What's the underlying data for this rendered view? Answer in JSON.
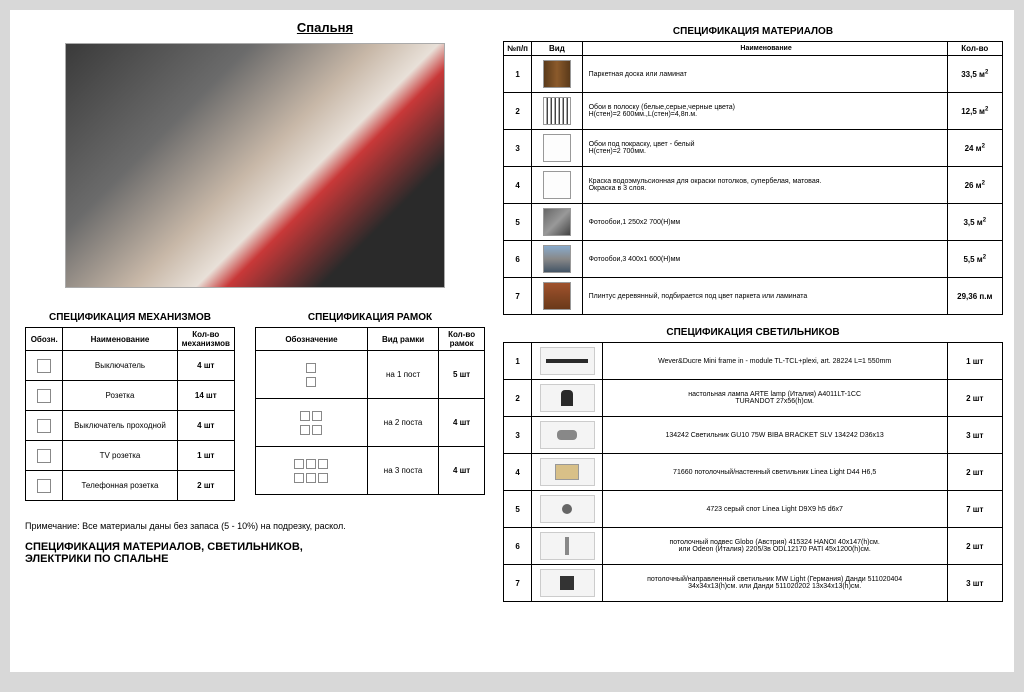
{
  "main_title": "Спальня",
  "materials": {
    "title": "СПЕЦИФИКАЦИЯ МАТЕРИАЛОВ",
    "headers": [
      "№п/п",
      "Вид",
      "Наименование",
      "Кол-во"
    ],
    "rows": [
      {
        "num": "1",
        "swatch": "sw-wood",
        "name": "Паркетная доска или ламинат",
        "qty": "33,5 м²"
      },
      {
        "num": "2",
        "swatch": "sw-stripes",
        "name": "Обои в полоску (белые,серые,черные цвета)\nH(стен)=2 600мм.,L(стен)=4,8п.м.",
        "qty": "12,5 м²"
      },
      {
        "num": "3",
        "swatch": "sw-white",
        "name": "Обои под покраску, цвет - белый\nH(стен)=2 700мм.",
        "qty": "24 м²"
      },
      {
        "num": "4",
        "swatch": "sw-white",
        "name": "Краска водоэмульсионная для окраски потолков, супербелая, матовая.\nОкраска в 3 слоя.",
        "qty": "26 м²"
      },
      {
        "num": "5",
        "swatch": "sw-photo1",
        "name": "Фотообои,1 250x2 700(H)мм",
        "qty": "3,5 м²"
      },
      {
        "num": "6",
        "swatch": "sw-photo2",
        "name": "Фотообои,3 400x1 600(H)мм",
        "qty": "5,5 м²"
      },
      {
        "num": "7",
        "swatch": "sw-plinth",
        "name": "Плинтус деревянный, подбирается под цвет паркета или ламината",
        "qty": "29,36 п.м"
      }
    ]
  },
  "mechanisms": {
    "title": "СПЕЦИФИКАЦИЯ МЕХАНИЗМОВ",
    "headers": [
      "Обозн.",
      "Наименование",
      "Кол-во механизмов"
    ],
    "rows": [
      {
        "name": "Выключатель",
        "qty": "4 шт"
      },
      {
        "name": "Розетка",
        "qty": "14 шт"
      },
      {
        "name": "Выключатель проходной",
        "qty": "4 шт"
      },
      {
        "name": "TV розетка",
        "qty": "1 шт"
      },
      {
        "name": "Телефонная розетка",
        "qty": "2 шт"
      }
    ]
  },
  "frames": {
    "title": "СПЕЦИФИКАЦИЯ РАМОК",
    "headers": [
      "Обозначение",
      "Вид рамки",
      "Кол-во рамок"
    ],
    "rows": [
      {
        "type": "на 1 пост",
        "boxes": 1,
        "qty": "5 шт"
      },
      {
        "type": "на 2 поста",
        "boxes": 2,
        "qty": "4 шт"
      },
      {
        "type": "на 3 поста",
        "boxes": 3,
        "qty": "4 шт"
      }
    ]
  },
  "lights": {
    "title": "СПЕЦИФИКАЦИЯ СВЕТИЛЬНИКОВ",
    "rows": [
      {
        "num": "1",
        "lamp": "l1",
        "name": "Wever&Ducre Mini frame in - module TL-TCL+plexi, art. 28224  L=1 550mm",
        "qty": "1 шт"
      },
      {
        "num": "2",
        "lamp": "l2",
        "name": "настольная лампа ARTE lamp (Италия) A4011LT-1CC\nTURANDOT  27x56(h)см.",
        "qty": "2 шт"
      },
      {
        "num": "3",
        "lamp": "l3",
        "name": "134242 Светильник GU10 75W BIBA BRACKET SLV 134242 D36x13",
        "qty": "3 шт"
      },
      {
        "num": "4",
        "lamp": "l4",
        "name": "71660 потолочный/настенный светильник Linea Light D44 H6,5",
        "qty": "2 шт"
      },
      {
        "num": "5",
        "lamp": "l5",
        "name": "4723 серый спот Linea Light D9X9 h5 d6x7",
        "qty": "7 шт"
      },
      {
        "num": "6",
        "lamp": "l6",
        "name": "потолочный подвес Globo (Австрия) 415324 HANOI 40x147(h)см.\nили Odeon (Италия) 2205/3в ODL12170 PATI 45x1200(h)см.",
        "qty": "2 шт"
      },
      {
        "num": "7",
        "lamp": "l7",
        "name": "потолочный/направленный светильник MW Light (Германия) Данди 511020404\n34x34x13(h)см.  или Данди 511020202  13x34x13(h)см.",
        "qty": "3 шт"
      }
    ]
  },
  "note": "Примечание: Все материалы даны без запаса (5 - 10%) на подрезку, раскол.",
  "caption": "СПЕЦИФИКАЦИЯ МАТЕРИАЛОВ, СВЕТИЛЬНИКОВ,\nЭЛЕКТРИКИ ПО СПАЛЬНЕ",
  "colors": {
    "page_bg": "#ffffff",
    "outer_bg": "#d8d8d8",
    "border": "#000000"
  }
}
